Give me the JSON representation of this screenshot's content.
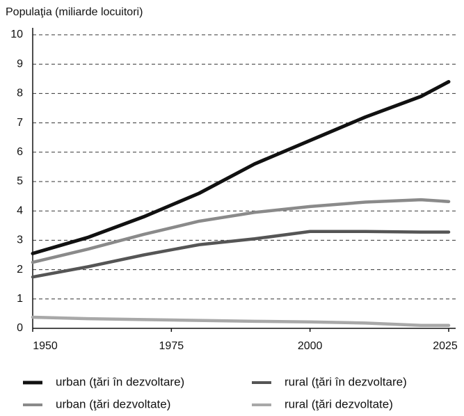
{
  "chart_data": {
    "type": "line",
    "title": "Populaţia (miliarde locuitori)",
    "x": [
      1950,
      1960,
      1970,
      1980,
      1990,
      2000,
      2010,
      2020,
      2025
    ],
    "series": [
      {
        "name": "urban (ţări în dezvoltare)",
        "color": "#111111",
        "values": [
          2.55,
          3.1,
          3.8,
          4.6,
          5.6,
          6.4,
          7.2,
          7.9,
          8.4
        ]
      },
      {
        "name": "rural (ţări în dezvoltare)",
        "color": "#555555",
        "values": [
          1.75,
          2.1,
          2.5,
          2.85,
          3.05,
          3.3,
          3.3,
          3.28,
          3.28
        ]
      },
      {
        "name": "urban (ţări dezvoltate)",
        "color": "#8a8a8a",
        "values": [
          2.25,
          2.7,
          3.2,
          3.65,
          3.95,
          4.15,
          4.3,
          4.38,
          4.32
        ]
      },
      {
        "name": "rural (ţări dezvoltate)",
        "color": "#a8a8a8",
        "values": [
          0.38,
          0.33,
          0.3,
          0.27,
          0.24,
          0.22,
          0.18,
          0.1,
          0.1
        ]
      }
    ],
    "xlim": [
      1950,
      2025
    ],
    "xticks": [
      1950,
      1975,
      2000,
      2025
    ],
    "ylim": [
      0,
      10
    ],
    "yticks": [
      0,
      1,
      2,
      3,
      4,
      5,
      6,
      7,
      8,
      9,
      10
    ],
    "grid": true,
    "legend": "bottom"
  }
}
